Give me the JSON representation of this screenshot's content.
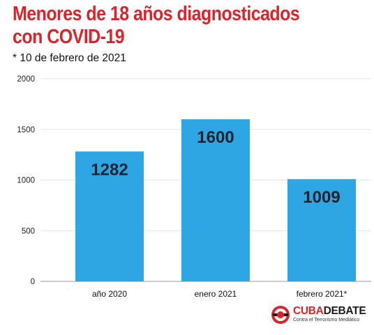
{
  "title_line1": "Menores de 18 años diagnosticados",
  "title_line2": "con COVID-19",
  "subtitle": "* 10 de febrero de 2021",
  "colors": {
    "title": "#d7262b",
    "bar": "#2ea6e4",
    "value_label": "#1c2430",
    "logo_red": "#d7262b"
  },
  "logo": {
    "name_part1": "CUBA",
    "name_part2": "DEBATE",
    "tagline": "Contra el Terrorismo Mediático",
    "icon": "cubadebate-logo-icon"
  },
  "chart_data": {
    "type": "bar",
    "categories": [
      "año 2020",
      "enero 2021",
      "febrero 2021*"
    ],
    "values": [
      1282,
      1600,
      1009
    ],
    "data_labels": [
      "1282",
      "1600",
      "1009"
    ],
    "title": "Menores de 18 años diagnosticados con COVID-19",
    "xlabel": "",
    "ylabel": "",
    "ylim": [
      0,
      2000
    ],
    "yticks": [
      0,
      500,
      1000,
      1500,
      2000
    ],
    "ytick_labels": [
      "0",
      "500",
      "1000",
      "1500",
      "2000"
    ],
    "grid": true,
    "legend": "none"
  }
}
